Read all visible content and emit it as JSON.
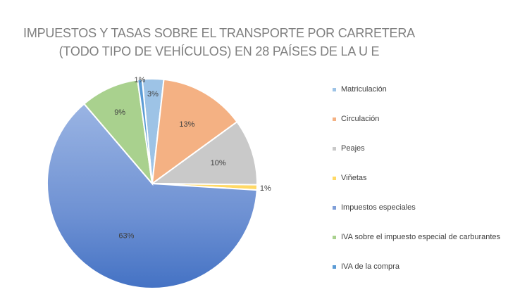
{
  "chart_data": {
    "type": "pie",
    "title": "IMPUESTOS Y TASAS SOBRE EL TRANSPORTE POR CARRETERA",
    "subtitle": "(TODO TIPO DE VEHÍCULOS) EN 28 PAÍSES DE LA U E",
    "categories": [
      "Matriculación",
      "Circulación",
      "Peajes",
      "Viñetas",
      "Impuestos especiales",
      "IVA sobre el impuesto especial de carburantes",
      "IVA de la compra"
    ],
    "values": [
      3.3,
      13.2,
      10.2,
      0.8,
      62.8,
      9.0,
      0.7
    ],
    "data_labels": [
      "3%",
      "13%",
      "10%",
      "1%",
      "63%",
      "9%",
      "1%"
    ],
    "colors": [
      "#9DC3E6",
      "#F4B183",
      "#C9C9C9",
      "#FFD966",
      "#7F9FD8",
      "#A9D18E",
      "#5B9BD5"
    ],
    "legend_position": "right"
  }
}
